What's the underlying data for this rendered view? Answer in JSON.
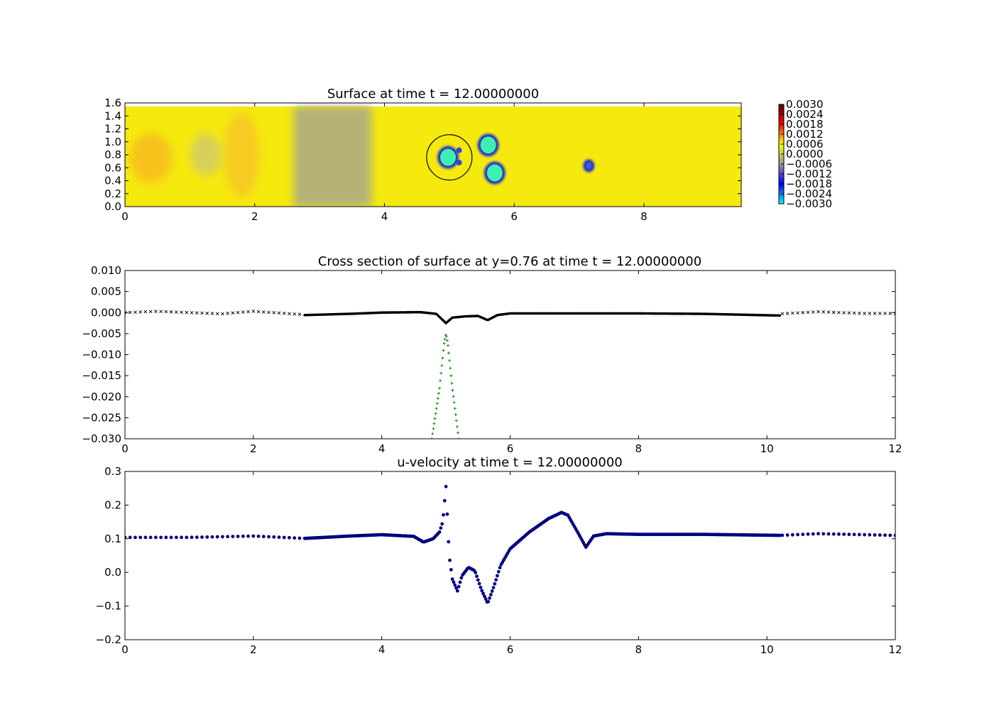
{
  "chart_data": [
    {
      "type": "heatmap",
      "title": "Surface at time t =    12.00000000",
      "xlim": [
        0,
        9.5
      ],
      "ylim": [
        0,
        1.6
      ],
      "xticks": [
        "0",
        "2",
        "4",
        "6",
        "8"
      ],
      "yticks": [
        "0.0",
        "0.2",
        "0.4",
        "0.6",
        "0.8",
        "1.0",
        "1.2",
        "1.4",
        "1.6"
      ],
      "colorbar": {
        "range": [
          -0.003,
          0.003
        ],
        "ticks": [
          "0.0030",
          "0.0024",
          "0.0018",
          "0.0012",
          "0.0006",
          "0.0000",
          "−0.0006",
          "−0.0012",
          "−0.0018",
          "−0.0024",
          "−0.0030"
        ],
        "colors": [
          "#550000",
          "#ff0000",
          "#ffff00",
          "#999999",
          "#0000ff",
          "#00ffff"
        ]
      },
      "background_color": "#f5e90e",
      "features": [
        {
          "kind": "gray-band",
          "x": [
            2.6,
            3.8
          ],
          "level": -0.0008
        },
        {
          "kind": "orange-blob",
          "x": 0.4,
          "y": 0.75,
          "level": 0.0007
        },
        {
          "kind": "gray-blob",
          "x": 1.25,
          "y": 0.8,
          "level": -0.0004
        },
        {
          "kind": "depression",
          "x": 5.6,
          "y": 0.95,
          "level": -0.003
        },
        {
          "kind": "depression",
          "x": 5.7,
          "y": 0.52,
          "level": -0.003
        },
        {
          "kind": "depression",
          "x": 4.98,
          "y": 0.76,
          "level": -0.003
        },
        {
          "kind": "depression",
          "x": 7.15,
          "y": 0.63,
          "level": -0.0015
        },
        {
          "kind": "circle",
          "x": 5.0,
          "y": 0.76,
          "r": 0.35
        }
      ]
    },
    {
      "type": "scatter",
      "title": "Cross section of surface at y=0.76 at time t =    12.00000000",
      "xlim": [
        0,
        12
      ],
      "ylim": [
        -0.03,
        0.01
      ],
      "xticks": [
        "0",
        "2",
        "4",
        "6",
        "8",
        "10",
        "12"
      ],
      "yticks": [
        "0.010",
        "0.005",
        "0.000",
        "−0.005",
        "−0.010",
        "−0.015",
        "−0.020",
        "−0.025",
        "−0.030"
      ],
      "series": [
        {
          "marker": "x",
          "color": "#000000",
          "x": [
            0,
            12
          ],
          "y_points": [
            [
              0.0,
              0.0
            ],
            [
              0.5,
              0.0003
            ],
            [
              1.0,
              0.0
            ],
            [
              1.5,
              -0.0003
            ],
            [
              2.0,
              0.0003
            ],
            [
              2.8,
              -0.0005
            ],
            [
              10.2,
              -0.0003
            ],
            [
              10.8,
              0.0002
            ],
            [
              11.5,
              -0.0002
            ],
            [
              12.0,
              -0.0002
            ]
          ]
        },
        {
          "marker": "circle",
          "color": "#000000",
          "x": [
            2.8,
            10.2
          ],
          "y_points": [
            [
              2.8,
              -0.0006
            ],
            [
              3.5,
              -0.0003
            ],
            [
              4.0,
              0.0
            ],
            [
              4.6,
              0.0001
            ],
            [
              4.85,
              -0.0003
            ],
            [
              5.0,
              -0.0025
            ],
            [
              5.1,
              -0.0012
            ],
            [
              5.3,
              -0.0009
            ],
            [
              5.5,
              -0.0008
            ],
            [
              5.65,
              -0.0018
            ],
            [
              5.8,
              -0.0006
            ],
            [
              6.0,
              -0.0002
            ],
            [
              7.0,
              -0.0002
            ],
            [
              8.0,
              -0.0002
            ],
            [
              9.0,
              -0.0003
            ],
            [
              10.2,
              -0.0007
            ]
          ]
        },
        {
          "marker": "+",
          "color": "#007f00",
          "x": [
            4.78,
            5.2
          ],
          "y_points": [
            [
              4.78,
              -0.03
            ],
            [
              4.9,
              -0.018
            ],
            [
              4.97,
              -0.0075
            ],
            [
              5.0,
              -0.005
            ],
            [
              5.03,
              -0.0075
            ],
            [
              5.1,
              -0.018
            ],
            [
              5.2,
              -0.03
            ]
          ]
        }
      ]
    },
    {
      "type": "scatter",
      "title": "u-velocity at time t =    12.00000000",
      "xlim": [
        0,
        12
      ],
      "ylim": [
        -0.2,
        0.3
      ],
      "xticks": [
        "0",
        "2",
        "4",
        "6",
        "8",
        "10",
        "12"
      ],
      "yticks": [
        "0.3",
        "0.2",
        "0.1",
        "0.0",
        "−0.1",
        "−0.2"
      ],
      "series": [
        {
          "marker": "dot",
          "color": "#000080",
          "x": [
            0,
            12
          ],
          "y_points": [
            [
              0.0,
              0.104
            ],
            [
              1.0,
              0.104
            ],
            [
              2.0,
              0.108
            ],
            [
              2.8,
              0.101
            ],
            [
              3.5,
              0.108
            ],
            [
              4.0,
              0.112
            ],
            [
              4.5,
              0.107
            ],
            [
              4.65,
              0.09
            ],
            [
              4.8,
              0.1
            ],
            [
              4.9,
              0.12
            ],
            [
              4.95,
              0.15
            ],
            [
              5.0,
              0.255
            ],
            [
              5.05,
              0.05
            ],
            [
              5.1,
              -0.02
            ],
            [
              5.18,
              -0.055
            ],
            [
              5.25,
              -0.01
            ],
            [
              5.35,
              0.015
            ],
            [
              5.45,
              0.005
            ],
            [
              5.55,
              -0.05
            ],
            [
              5.65,
              -0.092
            ],
            [
              5.75,
              -0.04
            ],
            [
              5.85,
              0.02
            ],
            [
              6.0,
              0.07
            ],
            [
              6.3,
              0.12
            ],
            [
              6.6,
              0.16
            ],
            [
              6.8,
              0.178
            ],
            [
              6.9,
              0.17
            ],
            [
              7.05,
              0.12
            ],
            [
              7.18,
              0.075
            ],
            [
              7.3,
              0.108
            ],
            [
              7.5,
              0.115
            ],
            [
              8.0,
              0.113
            ],
            [
              9.0,
              0.113
            ],
            [
              10.2,
              0.11
            ],
            [
              10.8,
              0.115
            ],
            [
              12.0,
              0.11
            ]
          ]
        }
      ]
    }
  ]
}
